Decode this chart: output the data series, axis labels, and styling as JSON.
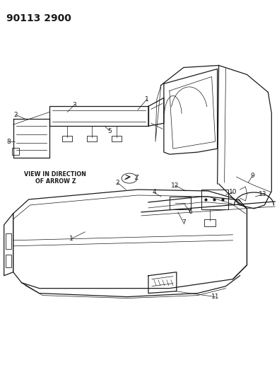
{
  "title_code": "90113 2900",
  "background_color": "#ffffff",
  "line_color": "#1a1a1a",
  "fig_width": 3.92,
  "fig_height": 5.33,
  "dpi": 100,
  "view_label_line1": "VIEW IN DIRECTION",
  "view_label_line2": "OF ARROW Z",
  "header_fontsize": 10,
  "label_fontsize": 6.5,
  "view_label_fontsize": 5.8
}
